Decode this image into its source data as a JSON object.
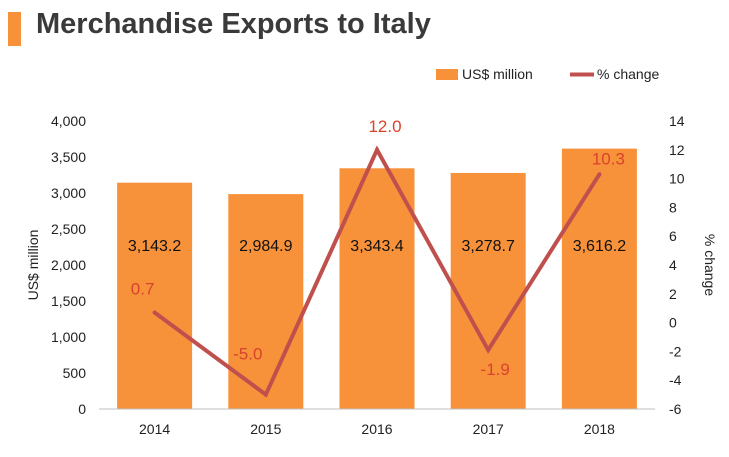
{
  "chart_data": {
    "type": "bar",
    "title": "Merchandise Exports to Italy",
    "categories": [
      "2014",
      "2015",
      "2016",
      "2017",
      "2018"
    ],
    "series": [
      {
        "name": "US$ million",
        "type": "bar",
        "axis": "left",
        "values": [
          3143.2,
          2984.9,
          3343.4,
          3278.7,
          3616.2
        ],
        "labels": [
          "3,143.2",
          "2,984.9",
          "3,343.4",
          "3,278.7",
          "3,616.2"
        ],
        "color": "#f7923a"
      },
      {
        "name": "% change",
        "type": "line",
        "axis": "right",
        "values": [
          0.7,
          -5.0,
          12.0,
          -1.9,
          10.3
        ],
        "labels": [
          "0.7",
          "-5.0",
          "12.0",
          "-1.9",
          "10.3"
        ],
        "color": "#c0504d"
      }
    ],
    "ylabel": "US$ million",
    "y2label": "% change",
    "ylim": [
      0,
      4000
    ],
    "yticks": [
      "0",
      "500",
      "1,000",
      "1,500",
      "2,000",
      "2,500",
      "3,000",
      "3,500",
      "4,000"
    ],
    "y2lim": [
      -6,
      14
    ],
    "y2ticks": [
      "-6",
      "-4",
      "-2",
      "0",
      "2",
      "4",
      "6",
      "8",
      "10",
      "12",
      "14"
    ],
    "legend_position": "top-right",
    "grid": false
  }
}
